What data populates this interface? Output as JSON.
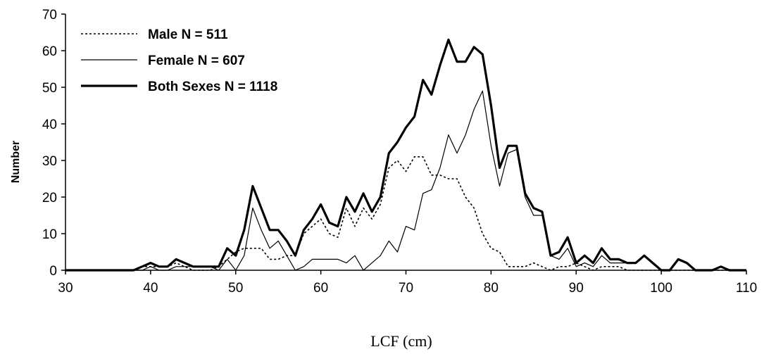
{
  "chart_data": {
    "type": "line",
    "xlabel": "LCF (cm)",
    "ylabel": "Number",
    "xlim": [
      30,
      110
    ],
    "ylim": [
      0,
      70
    ],
    "x_ticks": [
      30,
      40,
      50,
      60,
      70,
      80,
      90,
      100,
      110
    ],
    "y_ticks": [
      0,
      10,
      20,
      30,
      40,
      50,
      60,
      70
    ],
    "grid": false,
    "legend_position": "top-left",
    "x": [
      30,
      31,
      32,
      33,
      34,
      35,
      36,
      37,
      38,
      39,
      40,
      41,
      42,
      43,
      44,
      45,
      46,
      47,
      48,
      49,
      50,
      51,
      52,
      53,
      54,
      55,
      56,
      57,
      58,
      59,
      60,
      61,
      62,
      63,
      64,
      65,
      66,
      67,
      68,
      69,
      70,
      71,
      72,
      73,
      74,
      75,
      76,
      77,
      78,
      79,
      80,
      81,
      82,
      83,
      84,
      85,
      86,
      87,
      88,
      89,
      90,
      91,
      92,
      93,
      94,
      95,
      96,
      97,
      98,
      99,
      100,
      101,
      102,
      103,
      104,
      105,
      106,
      107,
      108,
      109,
      110
    ],
    "series": [
      {
        "name": "Male N = 511",
        "style": "dotted",
        "values": [
          0,
          0,
          0,
          0,
          0,
          0,
          0,
          0,
          0,
          1,
          1,
          1,
          1,
          2,
          1,
          0,
          0,
          0,
          1,
          3,
          5,
          6,
          6,
          6,
          3,
          3,
          4,
          4,
          10,
          12,
          14,
          10,
          9,
          17,
          12,
          17,
          14,
          18,
          28,
          30,
          27,
          31,
          31,
          26,
          26,
          25,
          25,
          20,
          17,
          10,
          6,
          5,
          1,
          1,
          1,
          2,
          1,
          0,
          1,
          1,
          2,
          1,
          0,
          1,
          1,
          1,
          0,
          0,
          0,
          0,
          0,
          0,
          0,
          0,
          0,
          0,
          0,
          0,
          0,
          0,
          0
        ]
      },
      {
        "name": "Female N = 607",
        "style": "thin",
        "values": [
          0,
          0,
          0,
          0,
          0,
          0,
          0,
          0,
          0,
          0,
          1,
          0,
          0,
          1,
          1,
          1,
          1,
          1,
          0,
          3,
          0,
          4,
          17,
          11,
          6,
          8,
          4,
          0,
          1,
          3,
          3,
          3,
          3,
          2,
          4,
          0,
          2,
          4,
          8,
          5,
          12,
          11,
          21,
          22,
          28,
          37,
          32,
          37,
          44,
          49,
          34,
          23,
          32,
          33,
          20,
          15,
          15,
          4,
          3,
          6,
          1,
          2,
          1,
          4,
          2,
          2,
          2,
          2,
          4,
          2,
          0,
          0,
          3,
          2,
          0,
          0,
          0,
          1,
          0,
          0,
          0
        ]
      },
      {
        "name": "Both Sexes N = 1118",
        "style": "thick",
        "values": [
          0,
          0,
          0,
          0,
          0,
          0,
          0,
          0,
          0,
          1,
          2,
          1,
          1,
          3,
          2,
          1,
          1,
          1,
          1,
          6,
          4,
          11,
          23,
          17,
          11,
          11,
          8,
          4,
          11,
          14,
          18,
          13,
          12,
          20,
          16,
          21,
          16,
          20,
          32,
          35,
          39,
          42,
          52,
          48,
          56,
          63,
          57,
          57,
          61,
          59,
          45,
          28,
          34,
          34,
          21,
          17,
          16,
          4,
          5,
          9,
          2,
          4,
          2,
          6,
          3,
          3,
          2,
          2,
          4,
          2,
          0,
          0,
          3,
          2,
          0,
          0,
          0,
          1,
          0,
          0,
          0
        ]
      }
    ]
  }
}
